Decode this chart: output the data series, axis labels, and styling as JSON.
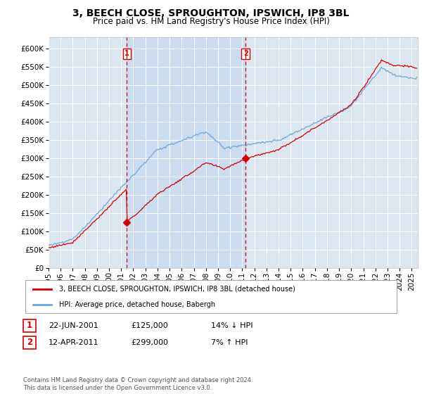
{
  "title": "3, BEECH CLOSE, SPROUGHTON, IPSWICH, IP8 3BL",
  "subtitle": "Price paid vs. HM Land Registry's House Price Index (HPI)",
  "legend_line1": "3, BEECH CLOSE, SPROUGHTON, IPSWICH, IP8 3BL (detached house)",
  "legend_line2": "HPI: Average price, detached house, Babergh",
  "purchase1_date": "22-JUN-2001",
  "purchase1_price": 125000,
  "purchase1_label": "14% ↓ HPI",
  "purchase1_year": 2001.47,
  "purchase2_date": "12-APR-2011",
  "purchase2_price": 299000,
  "purchase2_label": "7% ↑ HPI",
  "purchase2_year": 2011.28,
  "footer": "Contains HM Land Registry data © Crown copyright and database right 2024.\nThis data is licensed under the Open Government Licence v3.0.",
  "ylim": [
    0,
    630000
  ],
  "xlim_start": 1995,
  "xlim_end": 2025.5,
  "hpi_color": "#6fa8dc",
  "price_color": "#cc0000",
  "vline_color": "#cc0000",
  "bg_color": "#dce6f1",
  "shade_color": "#c5d9f1",
  "grid_color": "#ffffff",
  "title_fontsize": 10,
  "subtitle_fontsize": 8.5,
  "tick_fontsize": 7.5
}
